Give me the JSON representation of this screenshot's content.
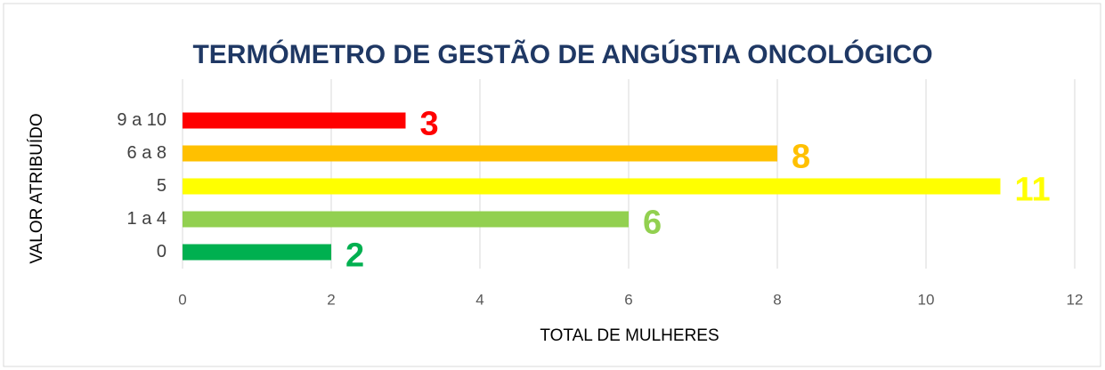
{
  "chart_data": {
    "type": "bar",
    "orientation": "horizontal",
    "title": "TERMÓMETRO DE GESTÃO DE ANGÚSTIA ONCOLÓGICO",
    "x_label": "TOTAL DE MULHERES",
    "y_label": "VALOR ATRIBUÍDO",
    "categories": [
      "9 a 10",
      "6 a 8",
      "5",
      "1 a 4",
      "0"
    ],
    "values": [
      3,
      8,
      11,
      6,
      2
    ],
    "colors": [
      "#ff0000",
      "#ffc000",
      "#ffff00",
      "#92d050",
      "#00b050"
    ],
    "xlim": [
      0,
      12
    ],
    "xticks": [
      0,
      2,
      4,
      6,
      8,
      10,
      12
    ],
    "grid": true
  }
}
